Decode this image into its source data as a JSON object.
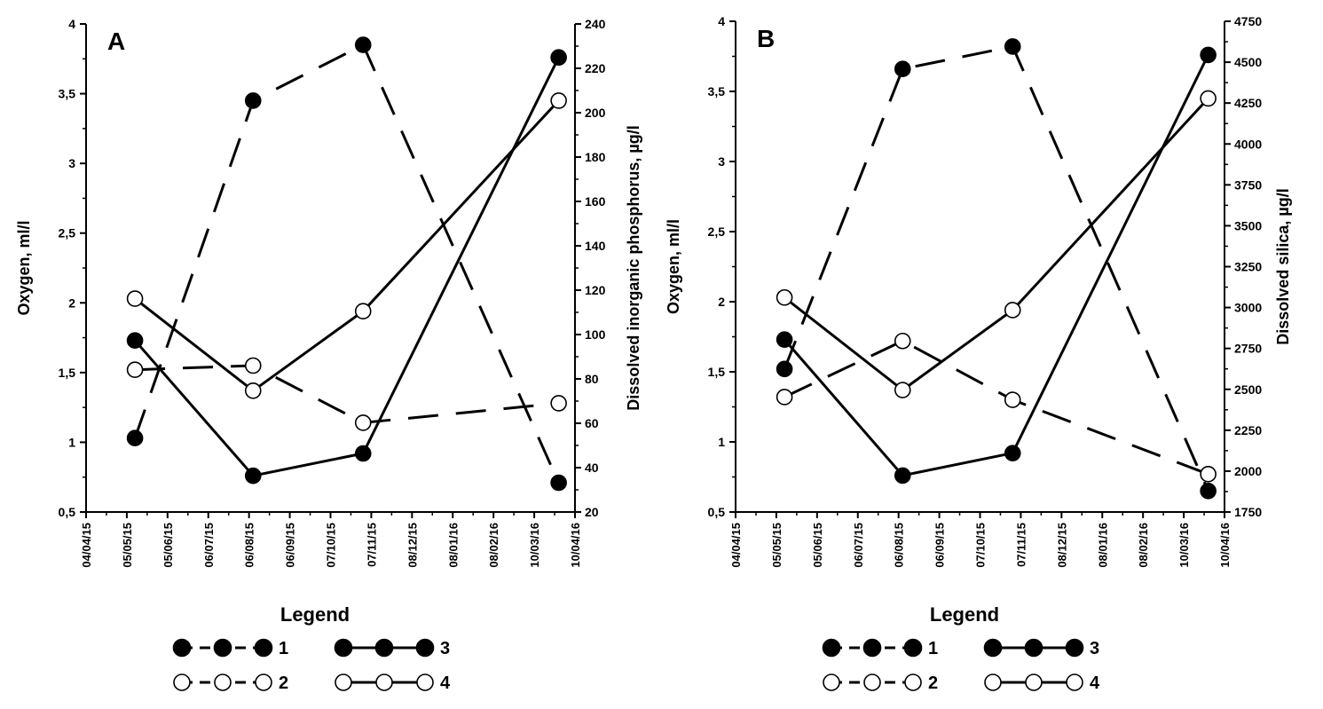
{
  "chart_data": [
    {
      "type": "line",
      "panel_label": "A",
      "ylabel_left": "Oxygen, ml/l",
      "ylabel_right": "Dissolved inorganic phosphorus, µg/l",
      "ylim_left": [
        0.5,
        4
      ],
      "ylim_right": [
        20,
        240
      ],
      "yticks_left": [
        "4",
        "3,5",
        "3",
        "2,5",
        "2",
        "1,5",
        "1",
        "0,5"
      ],
      "yticks_right": [
        "240",
        "220",
        "200",
        "180",
        "160",
        "140",
        "120",
        "100",
        "80",
        "60",
        "40",
        "20"
      ],
      "x_dates": [
        "04/04/15",
        "05/05/15",
        "05/06/15",
        "06/07/15",
        "06/08/15",
        "06/09/15",
        "07/10/15",
        "07/11/15",
        "08/12/15",
        "08/01/16",
        "08/02/16",
        "10/03/16",
        "10/04/16"
      ],
      "series": [
        {
          "name": "1",
          "axis": "left",
          "style": "dashed",
          "marker": "filled",
          "x": [
            1.2,
            4.1,
            6.8,
            11.6
          ],
          "values": [
            1.03,
            3.45,
            3.85,
            0.71
          ]
        },
        {
          "name": "2",
          "axis": "left",
          "style": "dashed",
          "marker": "open",
          "x": [
            1.2,
            4.1,
            6.8,
            11.6
          ],
          "values": [
            1.52,
            1.55,
            1.14,
            1.28
          ]
        },
        {
          "name": "3",
          "axis": "left",
          "style": "solid",
          "marker": "filled",
          "x": [
            1.2,
            4.1,
            6.8,
            11.6
          ],
          "values": [
            1.73,
            0.76,
            0.92,
            3.76
          ]
        },
        {
          "name": "4",
          "axis": "left",
          "style": "solid",
          "marker": "open",
          "x": [
            1.2,
            4.1,
            6.8,
            11.6
          ],
          "values": [
            2.03,
            1.37,
            1.94,
            3.45
          ]
        }
      ]
    },
    {
      "type": "line",
      "panel_label": "B",
      "ylabel_left": "Oxygen, ml/l",
      "ylabel_right": "Dissolved silica, µg/l",
      "ylim_left": [
        0.5,
        4
      ],
      "ylim_right": [
        1750,
        4750
      ],
      "yticks_left": [
        "4",
        "3,5",
        "3",
        "2,5",
        "2",
        "1,5",
        "1",
        "0,5"
      ],
      "yticks_right": [
        "4750",
        "4500",
        "4250",
        "4000",
        "3750",
        "3500",
        "3250",
        "3000",
        "2750",
        "2500",
        "2250",
        "2000",
        "1750"
      ],
      "x_dates": [
        "04/04/15",
        "05/05/15",
        "05/06/15",
        "06/07/15",
        "06/08/15",
        "06/09/15",
        "07/10/15",
        "07/11/15",
        "08/12/15",
        "08/01/16",
        "08/02/16",
        "10/03/16",
        "10/04/16"
      ],
      "series": [
        {
          "name": "1",
          "axis": "left",
          "style": "dashed",
          "marker": "filled",
          "x": [
            1.2,
            4.1,
            6.8,
            11.6
          ],
          "values": [
            1.52,
            3.66,
            3.82,
            0.65
          ]
        },
        {
          "name": "2",
          "axis": "left",
          "style": "dashed",
          "marker": "open",
          "x": [
            1.2,
            4.1,
            6.8,
            11.6
          ],
          "values": [
            1.32,
            1.72,
            1.3,
            0.77
          ]
        },
        {
          "name": "3",
          "axis": "left",
          "style": "solid",
          "marker": "filled",
          "x": [
            1.2,
            4.1,
            6.8,
            11.6
          ],
          "values": [
            1.73,
            0.76,
            0.92,
            3.76
          ]
        },
        {
          "name": "4",
          "axis": "left",
          "style": "solid",
          "marker": "open",
          "x": [
            1.2,
            4.1,
            6.8,
            11.6
          ],
          "values": [
            2.03,
            1.37,
            1.94,
            3.45
          ]
        }
      ]
    }
  ],
  "legend": {
    "title": "Legend",
    "items": [
      "1",
      "2",
      "3",
      "4"
    ]
  }
}
